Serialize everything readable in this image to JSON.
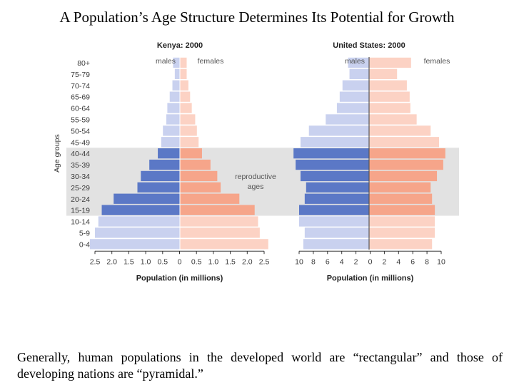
{
  "slide": {
    "title": "A Population’s Age Structure Determines Its Potential for Growth",
    "caption": "Generally, human populations in the developed world are “rectangular” and those of developing nations are “pyramidal.”"
  },
  "colors": {
    "male_light": "#c9d1ef",
    "male_dark": "#5b78c6",
    "female_light": "#fcd2c4",
    "female_dark": "#f6a58a",
    "band": "#e2e2e2",
    "axis": "#333333"
  },
  "chart_data": {
    "type": "population-pyramid",
    "ylabel": "Age groups",
    "age_groups": [
      "80+",
      "75-79",
      "70-74",
      "65-69",
      "60-64",
      "55-59",
      "50-54",
      "45-49",
      "40-44",
      "35-39",
      "30-34",
      "25-29",
      "20-24",
      "15-19",
      "10-14",
      "5-9",
      "0-4"
    ],
    "reproductive_groups": [
      "40-44",
      "35-39",
      "30-34",
      "25-29",
      "20-24",
      "15-19"
    ],
    "band_label_line1": "reproductive",
    "band_label_line2": "ages",
    "charts": [
      {
        "title": "Kenya: 2000",
        "xlabel": "Population (in millions)",
        "xlim": 2.5,
        "ticks": [
          "2.5",
          "2.0",
          "1.5",
          "1.0",
          "0.5",
          "0",
          "0.5",
          "1.0",
          "1.5",
          "2.0",
          "2.5"
        ],
        "males_label": "males",
        "females_label": "females",
        "males": [
          0.2,
          0.15,
          0.22,
          0.3,
          0.37,
          0.4,
          0.5,
          0.55,
          0.65,
          0.9,
          1.15,
          1.25,
          1.95,
          2.3,
          2.4,
          2.5,
          2.65
        ],
        "females": [
          0.2,
          0.2,
          0.25,
          0.3,
          0.35,
          0.45,
          0.5,
          0.55,
          0.65,
          0.9,
          1.1,
          1.2,
          1.75,
          2.2,
          2.3,
          2.35,
          2.6
        ]
      },
      {
        "title": "United States: 2000",
        "xlabel": "Population (in millions)",
        "xlim": 10,
        "ticks": [
          "10",
          "8",
          "6",
          "4",
          "2",
          "0",
          "2",
          "4",
          "6",
          "8",
          "10"
        ],
        "males_label": "males",
        "females_label": "females",
        "males": [
          3.0,
          2.8,
          3.8,
          4.2,
          4.6,
          6.2,
          8.6,
          9.8,
          10.8,
          10.5,
          9.8,
          9.0,
          9.2,
          10.0,
          10.0,
          9.2,
          9.4
        ],
        "females": [
          6.0,
          4.0,
          5.4,
          5.8,
          5.9,
          6.8,
          8.8,
          10.0,
          10.9,
          10.6,
          9.7,
          8.8,
          9.0,
          9.4,
          9.4,
          9.4,
          9.0
        ]
      }
    ]
  }
}
